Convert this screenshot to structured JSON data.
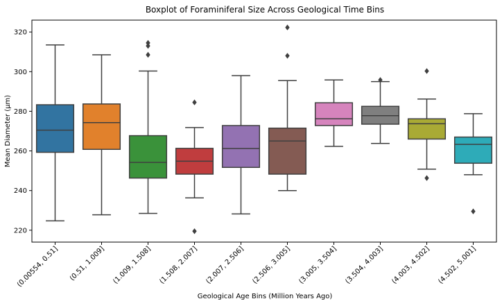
{
  "chart_data": {
    "type": "box",
    "title": "Boxplot of Foraminiferal Size Across Geological Time Bins",
    "xlabel": "Geological Age Bins (Million Years Ago)",
    "ylabel": "Mean Diameter (μm)",
    "ylim": [
      214,
      326
    ],
    "yticks": [
      220,
      240,
      260,
      280,
      300,
      320
    ],
    "grid": false,
    "categories": [
      "(0.00554, 0.51]",
      "(0.51, 1.009]",
      "(1.009, 1.508]",
      "(1.508, 2.007]",
      "(2.007, 2.506]",
      "(2.506, 3.005]",
      "(3.005, 3.504]",
      "(3.504, 4.003]",
      "(4.003, 4.502]",
      "(4.502, 5.001]"
    ],
    "boxes": [
      {
        "whisker_low": 224.7,
        "q1": 259.3,
        "median": 270.5,
        "q3": 283.3,
        "whisker_high": 313.5,
        "outliers": [],
        "color": "#3274a1"
      },
      {
        "whisker_low": 227.8,
        "q1": 260.8,
        "median": 274.3,
        "q3": 283.7,
        "whisker_high": 308.5,
        "outliers": [],
        "color": "#e1812c"
      },
      {
        "whisker_low": 228.5,
        "q1": 246.3,
        "median": 254.2,
        "q3": 267.7,
        "whisker_high": 300.3,
        "outliers": [
          308.5,
          313.0,
          314.5
        ],
        "color": "#3a923a"
      },
      {
        "whisker_low": 236.3,
        "q1": 248.3,
        "median": 254.8,
        "q3": 261.3,
        "whisker_high": 271.8,
        "outliers": [
          219.5,
          284.5
        ],
        "color": "#c03d3e"
      },
      {
        "whisker_low": 228.2,
        "q1": 251.7,
        "median": 261.2,
        "q3": 272.8,
        "whisker_high": 298.0,
        "outliers": [],
        "color": "#9372b2"
      },
      {
        "whisker_low": 240.0,
        "q1": 248.3,
        "median": 265.0,
        "q3": 271.5,
        "whisker_high": 295.5,
        "outliers": [
          308.0,
          322.3
        ],
        "color": "#845b53"
      },
      {
        "whisker_low": 262.3,
        "q1": 272.8,
        "median": 276.2,
        "q3": 284.3,
        "whisker_high": 295.8,
        "outliers": [],
        "color": "#d684bd"
      },
      {
        "whisker_low": 263.8,
        "q1": 273.5,
        "median": 277.8,
        "q3": 282.5,
        "whisker_high": 295.0,
        "outliers": [
          295.8
        ],
        "color": "#7f7f7f"
      },
      {
        "whisker_low": 250.8,
        "q1": 266.0,
        "median": 273.7,
        "q3": 276.2,
        "whisker_high": 286.2,
        "outliers": [
          246.3,
          300.3
        ],
        "color": "#a9aa35"
      },
      {
        "whisker_low": 248.0,
        "q1": 253.8,
        "median": 263.3,
        "q3": 267.0,
        "whisker_high": 278.8,
        "outliers": [
          229.5
        ],
        "color": "#2eabb8"
      }
    ]
  }
}
